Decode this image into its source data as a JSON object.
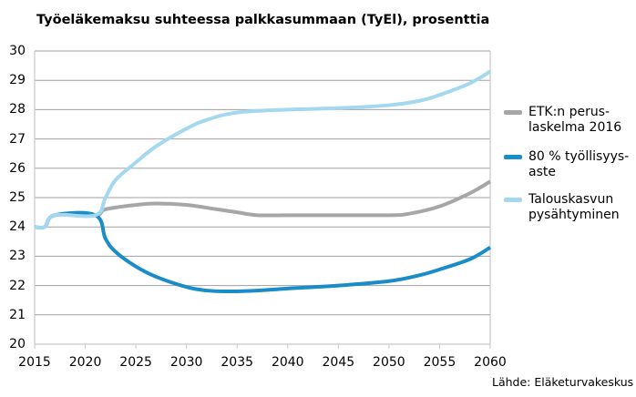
{
  "chart_data": {
    "type": "line",
    "title": "Työeläkemaksu suhteessa palkkasummaan (TyEl), prosenttia",
    "xlabel": "",
    "ylabel": "",
    "xlim": [
      2015,
      2060
    ],
    "ylim": [
      20,
      30
    ],
    "x_ticks": [
      "2015",
      "2020",
      "2025",
      "2030",
      "2035",
      "2040",
      "2045",
      "2050",
      "2055",
      "2060"
    ],
    "y_ticks": [
      "20",
      "21",
      "22",
      "23",
      "24",
      "25",
      "26",
      "27",
      "28",
      "29",
      "30"
    ],
    "grid": true,
    "legend_position": "right",
    "source": "Lähde: Eläketurvakeskus",
    "series": [
      {
        "name": "ETK:n perus-laskelma 2016",
        "color": "#a6a6a6",
        "points": [
          [
            2015,
            24.0
          ],
          [
            2016,
            24.0
          ],
          [
            2017,
            24.4
          ],
          [
            2021,
            24.4
          ],
          [
            2022,
            24.6
          ],
          [
            2025,
            24.75
          ],
          [
            2027,
            24.8
          ],
          [
            2030,
            24.75
          ],
          [
            2033,
            24.6
          ],
          [
            2035,
            24.5
          ],
          [
            2037,
            24.4
          ],
          [
            2040,
            24.4
          ],
          [
            2045,
            24.4
          ],
          [
            2050,
            24.4
          ],
          [
            2052,
            24.45
          ],
          [
            2055,
            24.7
          ],
          [
            2058,
            25.15
          ],
          [
            2060,
            25.55
          ]
        ]
      },
      {
        "name": "80 % työllisyys-aste",
        "color": "#1a8cc8",
        "points": [
          [
            2015,
            24.0
          ],
          [
            2016,
            24.0
          ],
          [
            2017,
            24.4
          ],
          [
            2021,
            24.4
          ],
          [
            2022,
            23.6
          ],
          [
            2023,
            23.15
          ],
          [
            2025,
            22.65
          ],
          [
            2027,
            22.3
          ],
          [
            2030,
            21.95
          ],
          [
            2032,
            21.83
          ],
          [
            2034,
            21.8
          ],
          [
            2037,
            21.83
          ],
          [
            2040,
            21.9
          ],
          [
            2045,
            22.0
          ],
          [
            2050,
            22.15
          ],
          [
            2053,
            22.35
          ],
          [
            2055,
            22.55
          ],
          [
            2058,
            22.9
          ],
          [
            2060,
            23.3
          ]
        ]
      },
      {
        "name": "Talouskasvun pysähtyminen",
        "color": "#a4d8f0",
        "points": [
          [
            2015,
            24.0
          ],
          [
            2016,
            24.0
          ],
          [
            2017,
            24.4
          ],
          [
            2021,
            24.4
          ],
          [
            2022,
            25.0
          ],
          [
            2023,
            25.6
          ],
          [
            2025,
            26.2
          ],
          [
            2027,
            26.75
          ],
          [
            2030,
            27.35
          ],
          [
            2032,
            27.65
          ],
          [
            2035,
            27.9
          ],
          [
            2040,
            28.0
          ],
          [
            2045,
            28.05
          ],
          [
            2050,
            28.15
          ],
          [
            2053,
            28.3
          ],
          [
            2055,
            28.5
          ],
          [
            2058,
            28.9
          ],
          [
            2060,
            29.3
          ]
        ]
      }
    ]
  },
  "legend": {
    "items": [
      {
        "line1": "ETK:n perus-",
        "line2": "laskelma 2016",
        "color": "#a6a6a6"
      },
      {
        "line1": "80 % työllisyys-",
        "line2": "aste",
        "color": "#1a8cc8"
      },
      {
        "line1": "Talouskasvun",
        "line2": "pysähtyminen",
        "color": "#a4d8f0"
      }
    ]
  }
}
